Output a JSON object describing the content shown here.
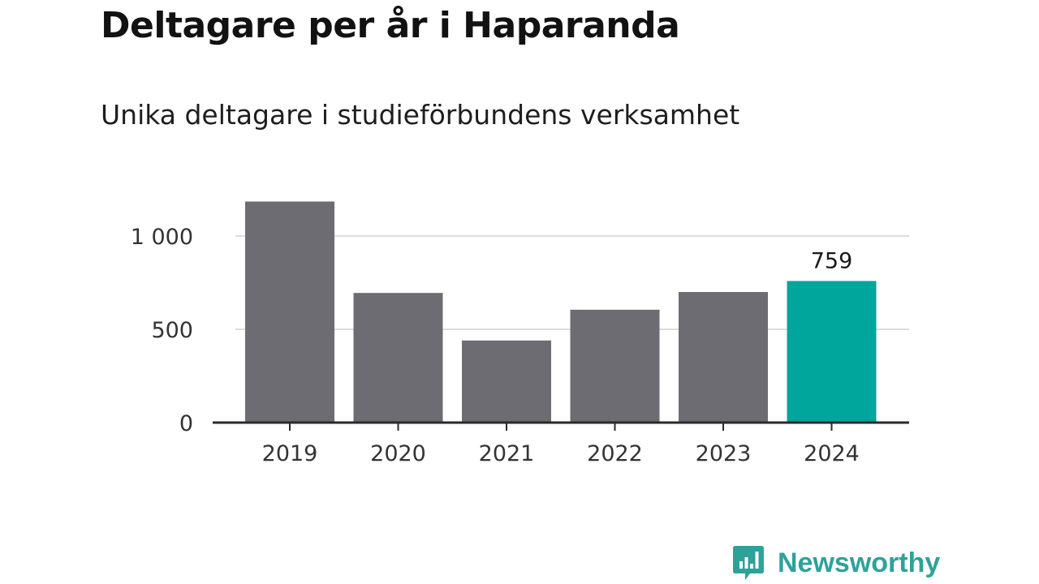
{
  "title": "Deltagare per år i Haparanda",
  "subtitle": "Unika deltagare i studieförbundens verksamhet",
  "brand": {
    "name": "Newsworthy",
    "color": "#2ea29a"
  },
  "colors": {
    "bar": "#6d6c72",
    "highlight": "#00a69c",
    "grid": "#dddddd",
    "axis": "#2a2a2a",
    "tick_text": "#333333"
  },
  "chart_data": {
    "type": "bar",
    "title": "Deltagare per år i Haparanda",
    "subtitle": "Unika deltagare i studieförbundens verksamhet",
    "categories": [
      "2019",
      "2020",
      "2021",
      "2022",
      "2023",
      "2024"
    ],
    "values": [
      1185,
      695,
      440,
      605,
      700,
      759
    ],
    "highlight_index": 5,
    "data_labels": [
      {
        "index": 5,
        "text": "759"
      }
    ],
    "ylim": [
      0,
      1250
    ],
    "yticks": [
      0,
      500,
      1000
    ],
    "ytick_labels": [
      "0",
      "500",
      "1 000"
    ],
    "grid": true,
    "xlabel": "",
    "ylabel": ""
  }
}
